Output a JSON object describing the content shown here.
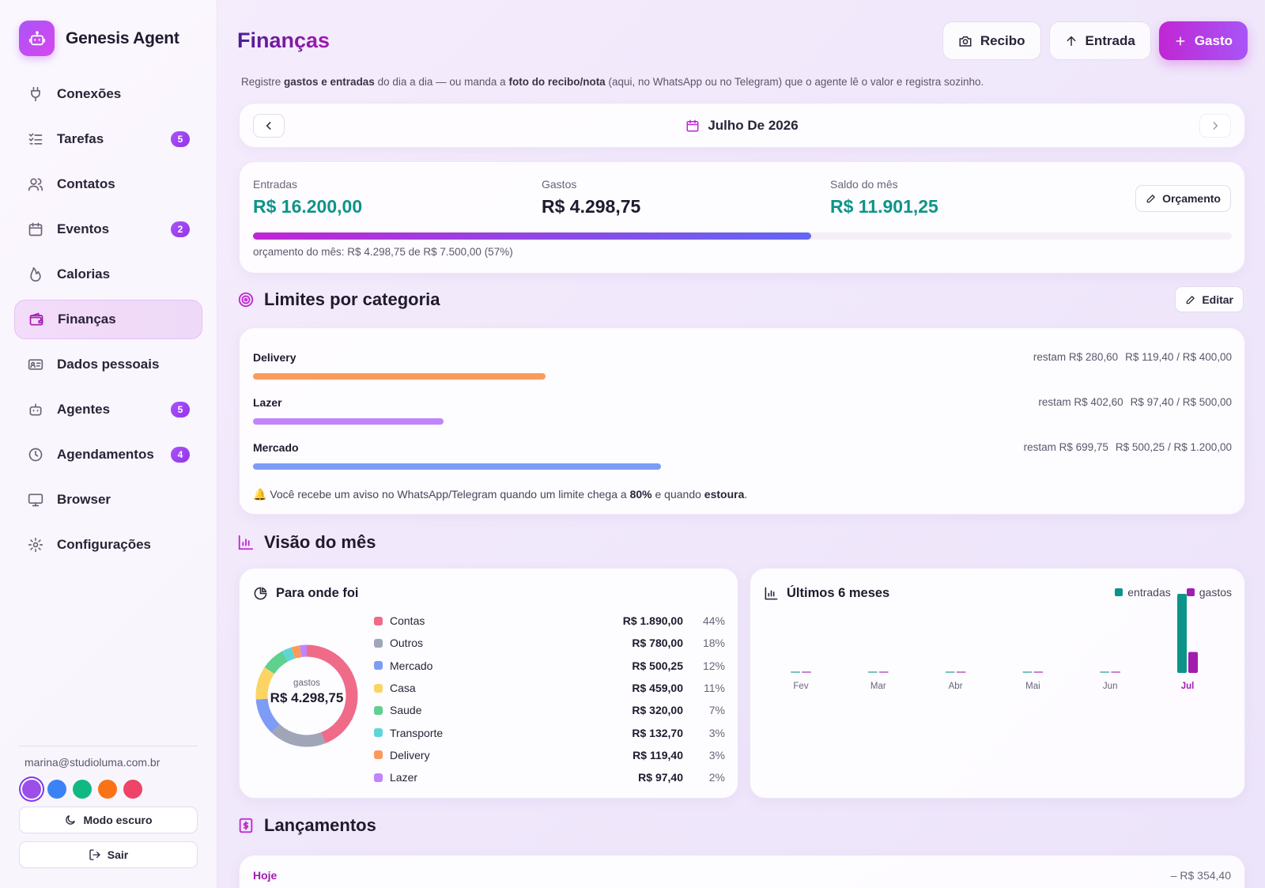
{
  "app": {
    "name": "Genesis Agent"
  },
  "sidebar": {
    "items": [
      {
        "label": "Conexões",
        "icon": "plug-icon",
        "badge": ""
      },
      {
        "label": "Tarefas",
        "icon": "checklist-icon",
        "badge": "5"
      },
      {
        "label": "Contatos",
        "icon": "users-icon",
        "badge": ""
      },
      {
        "label": "Eventos",
        "icon": "calendar-icon",
        "badge": "2"
      },
      {
        "label": "Calorias",
        "icon": "flame-icon",
        "badge": ""
      },
      {
        "label": "Finanças",
        "icon": "wallet-icon",
        "badge": "",
        "active": true
      },
      {
        "label": "Dados pessoais",
        "icon": "id-card-icon",
        "badge": ""
      },
      {
        "label": "Agentes",
        "icon": "bot-icon",
        "badge": "5"
      },
      {
        "label": "Agendamentos",
        "icon": "clock-icon",
        "badge": "4"
      },
      {
        "label": "Browser",
        "icon": "monitor-icon",
        "badge": ""
      },
      {
        "label": "Configurações",
        "icon": "gear-icon",
        "badge": ""
      }
    ],
    "user_email": "marina@studioluma.com.br",
    "theme_colors": [
      "#9b4ee8",
      "#3b82f6",
      "#10b981",
      "#f97316",
      "#ef4467"
    ],
    "dark_mode_label": "Modo escuro",
    "logout_label": "Sair"
  },
  "header": {
    "title": "Finanças",
    "receipt_label": "Recibo",
    "income_label": "Entrada",
    "expense_label": "Gasto",
    "subtitle_parts": [
      "Registre ",
      "gastos e entradas",
      " do dia a dia — ou manda a ",
      "foto do recibo/nota",
      " (aqui, no WhatsApp ou no Telegram) que o agente lê o valor e registra sozinho."
    ]
  },
  "month": {
    "label": "Julho De 2026"
  },
  "summary": {
    "income_label": "Entradas",
    "income_value": "R$ 16.200,00",
    "expense_label": "Gastos",
    "expense_value": "R$ 4.298,75",
    "balance_label": "Saldo do mês",
    "balance_value": "R$ 11.901,25",
    "budget_button": "Orçamento",
    "budget_fraction": 0.57,
    "budget_text": "orçamento do mês: R$ 4.298,75 de R$ 7.500,00 (57%)"
  },
  "limits": {
    "title": "Limites por categoria",
    "edit_label": "Editar",
    "items": [
      {
        "name": "Delivery",
        "remaining": "restam R$ 280,60",
        "spent": "R$ 119,40 / R$ 400,00",
        "fraction": 0.2985,
        "color": "#fb9a5c"
      },
      {
        "name": "Lazer",
        "remaining": "restam R$ 402,60",
        "spent": "R$ 97,40 / R$ 500,00",
        "fraction": 0.1948,
        "color": "#c084fc"
      },
      {
        "name": "Mercado",
        "remaining": "restam R$ 699,75",
        "spent": "R$ 500,25 / R$ 1.200,00",
        "fraction": 0.4169,
        "color": "#7c9cf5"
      }
    ],
    "alert_parts": [
      "🔔 Você recebe um aviso no WhatsApp/Telegram quando um limite chega a ",
      "80%",
      " e quando ",
      "estoura",
      "."
    ]
  },
  "overview": {
    "title": "Visão do mês"
  },
  "breakdown": {
    "title": "Para onde foi",
    "center_label": "gastos",
    "center_value": "R$ 4.298,75",
    "items": [
      {
        "name": "Contas",
        "value": "R$ 1.890,00",
        "pct": "44%",
        "amount": 1890.0,
        "color": "#ef6b87"
      },
      {
        "name": "Outros",
        "value": "R$ 780,00",
        "pct": "18%",
        "amount": 780.0,
        "color": "#a0a5b8"
      },
      {
        "name": "Mercado",
        "value": "R$ 500,25",
        "pct": "12%",
        "amount": 500.25,
        "color": "#7c9cf5"
      },
      {
        "name": "Casa",
        "value": "R$ 459,00",
        "pct": "11%",
        "amount": 459.0,
        "color": "#fcd464"
      },
      {
        "name": "Saude",
        "value": "R$ 320,00",
        "pct": "7%",
        "amount": 320.0,
        "color": "#5fd08e"
      },
      {
        "name": "Transporte",
        "value": "R$ 132,70",
        "pct": "3%",
        "amount": 132.7,
        "color": "#5ed6d8"
      },
      {
        "name": "Delivery",
        "value": "R$ 119,40",
        "pct": "3%",
        "amount": 119.4,
        "color": "#fb9a5c"
      },
      {
        "name": "Lazer",
        "value": "R$ 97,40",
        "pct": "2%",
        "amount": 97.4,
        "color": "#c084fc"
      }
    ]
  },
  "chart_data": {
    "type": "bar",
    "title": "Últimos 6 meses",
    "categories": [
      "Fev",
      "Mar",
      "Abr",
      "Mai",
      "Jun",
      "Jul"
    ],
    "series": [
      {
        "name": "entradas",
        "color": "#0d9488",
        "values": [
          0,
          0,
          0,
          0,
          0,
          16200.0
        ]
      },
      {
        "name": "gastos",
        "color": "#a21caf",
        "values": [
          0,
          0,
          0,
          0,
          0,
          4298.75
        ]
      }
    ],
    "highlight_category": "Jul",
    "legend_position": "top-right",
    "grid": false
  },
  "entries": {
    "title": "Lançamentos",
    "day_label": "Hoje",
    "day_total": "– R$ 354,40"
  }
}
